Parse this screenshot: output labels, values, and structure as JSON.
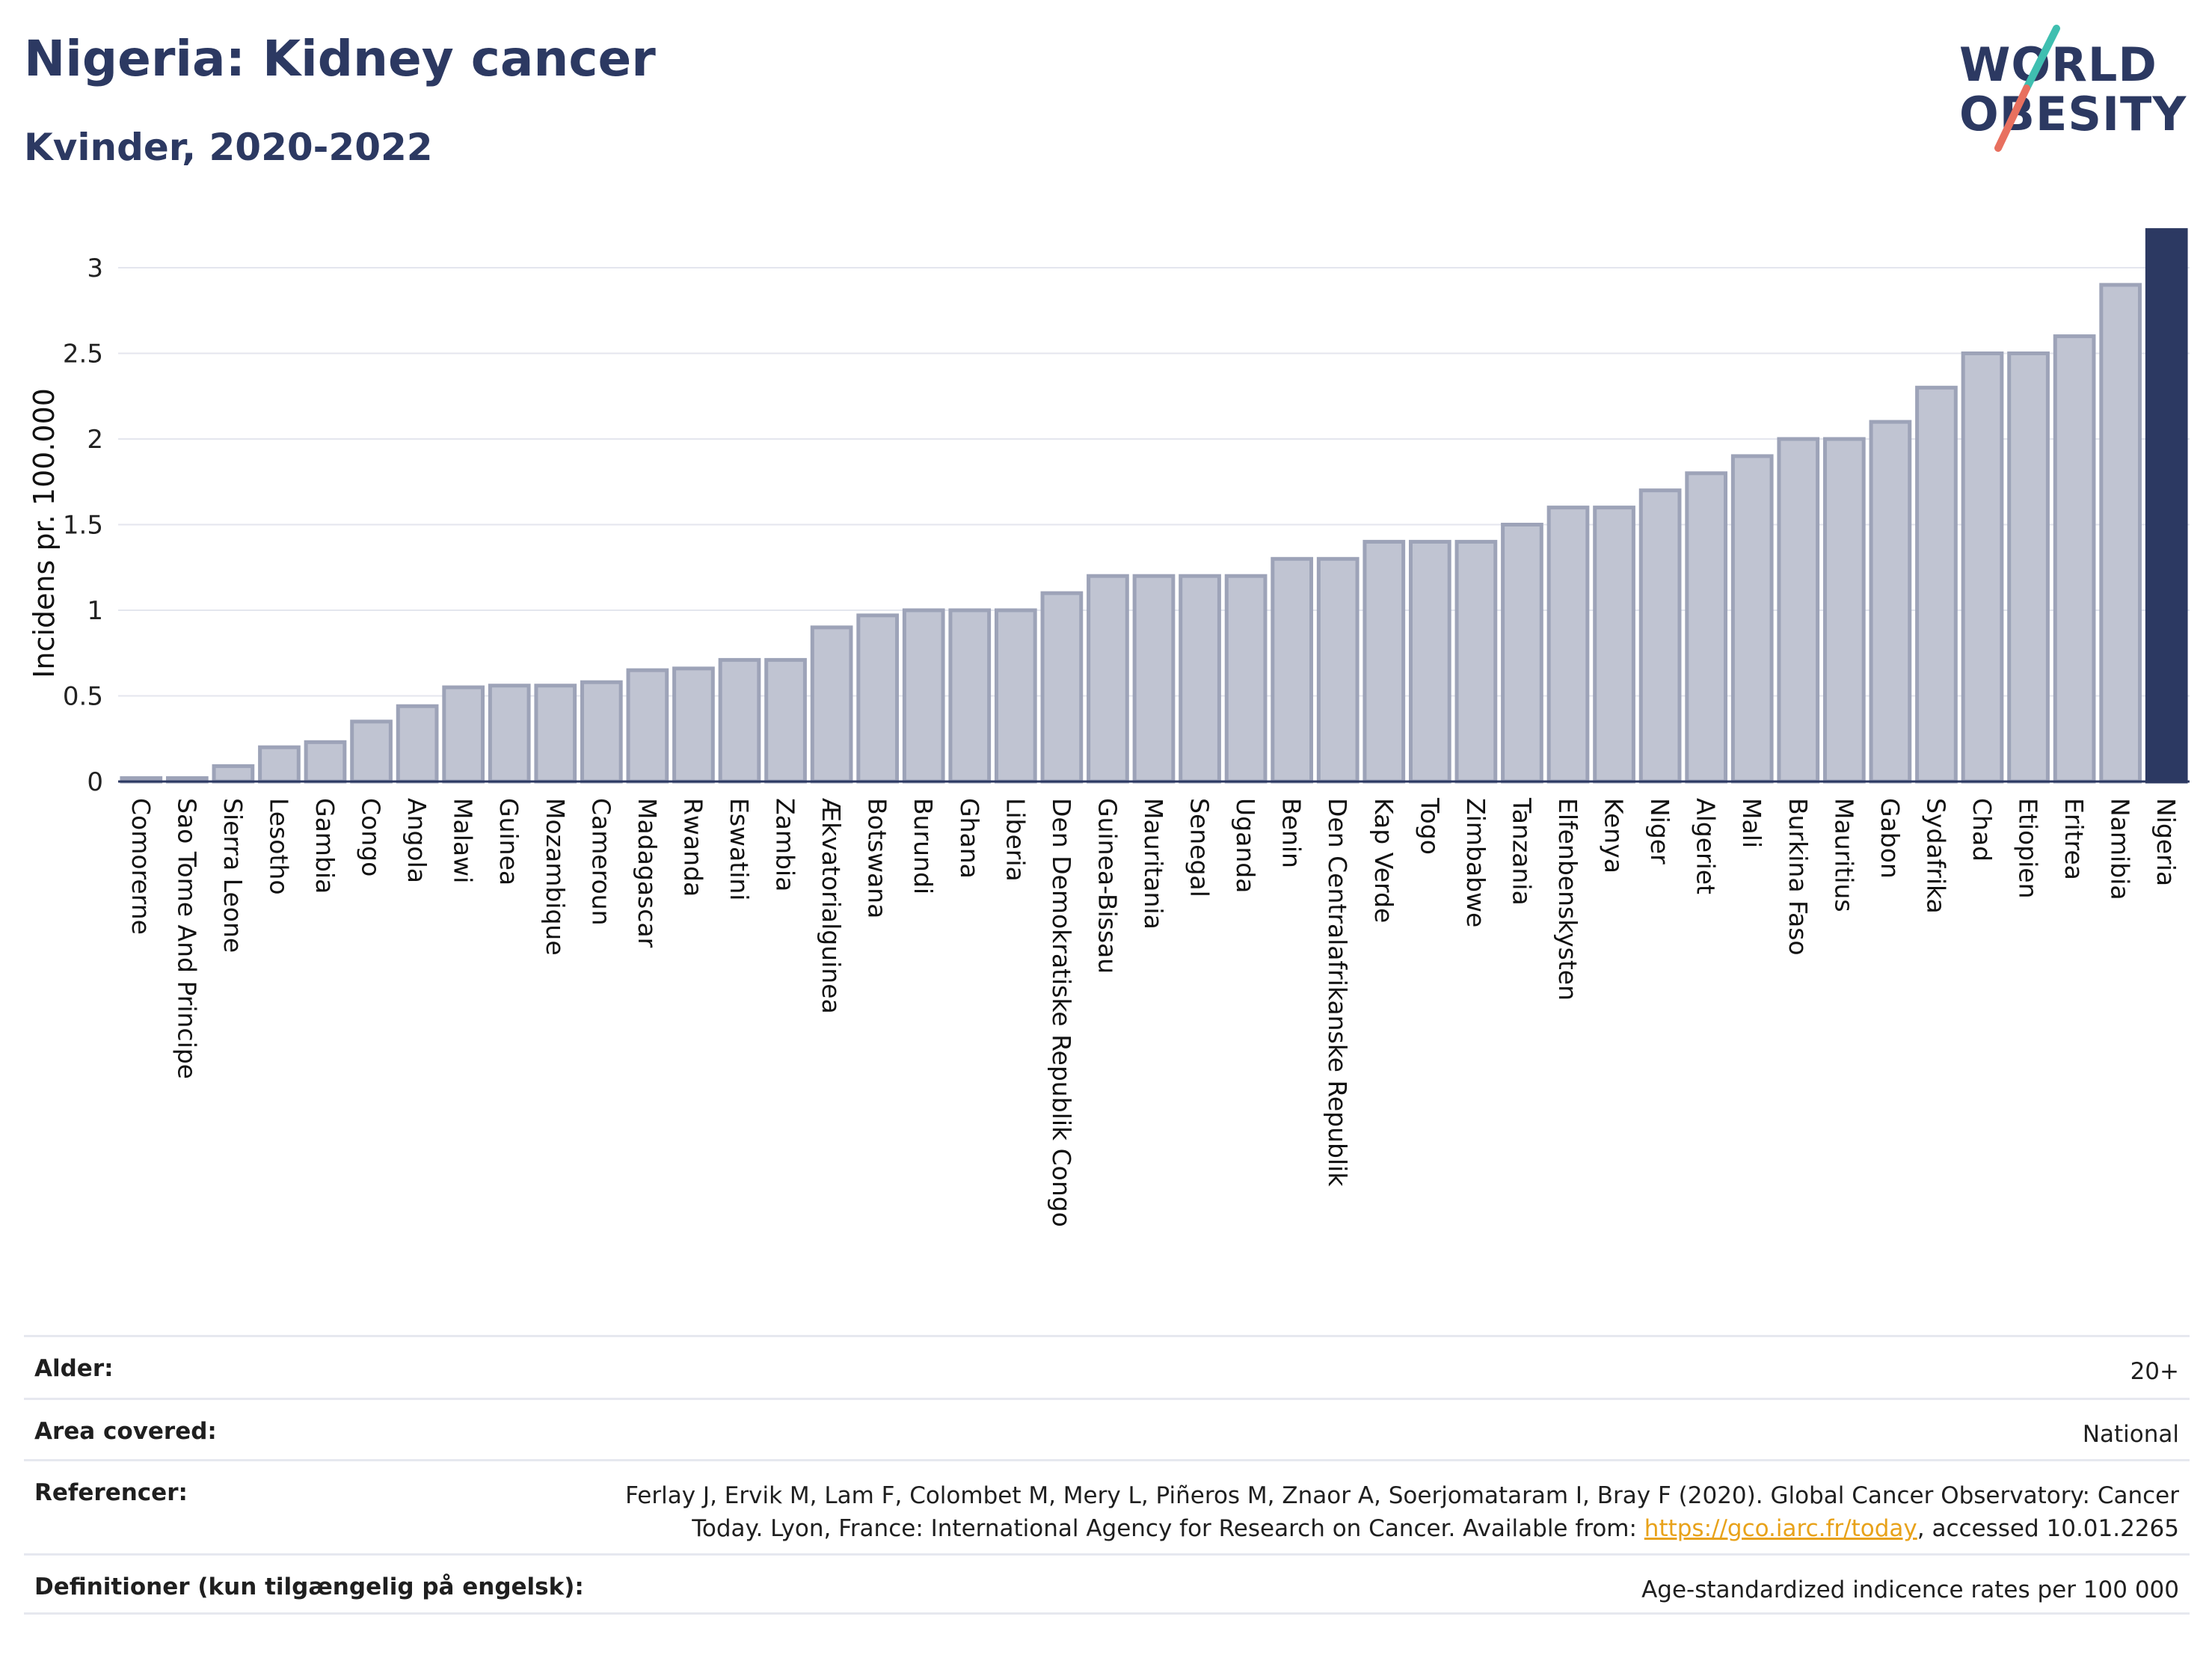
{
  "header": {
    "title": "Nigeria: Kidney cancer",
    "subtitle": "Kvinder, 2020-2022"
  },
  "logo": {
    "line1": "WORLD",
    "line2": "OBESITY",
    "colors": {
      "text": "#2c3962",
      "slash_top": "#3fbfb0",
      "slash_bottom": "#e8705f"
    }
  },
  "chart_data": {
    "type": "bar",
    "title": "Nigeria: Kidney cancer",
    "subtitle": "Kvinder, 2020-2022",
    "ylabel": "Incidens pr. 100.000",
    "xlabel": "",
    "ylim": [
      0,
      3.22
    ],
    "yticks": [
      0,
      0.5,
      1,
      1.5,
      2,
      2.5,
      3
    ],
    "ytick_labels": [
      "0",
      "0.5",
      "1",
      "1.5",
      "2",
      "2.5",
      "3"
    ],
    "grid": true,
    "highlight": "Nigeria",
    "colors": {
      "bar": "#c0c4d2",
      "bar_border": "#9da3b8",
      "highlight": "#2c3962"
    },
    "categories": [
      "Comorerne",
      "Sao Tome And Principe",
      "Sierra Leone",
      "Lesotho",
      "Gambia",
      "Congo",
      "Angola",
      "Malawi",
      "Guinea",
      "Mozambique",
      "Cameroun",
      "Madagascar",
      "Rwanda",
      "Eswatini",
      "Zambia",
      "Ækvatorialguinea",
      "Botswana",
      "Burundi",
      "Ghana",
      "Liberia",
      "Den Demokratiske Republik Congo",
      "Guinea-Bissau",
      "Mauritania",
      "Senegal",
      "Uganda",
      "Benin",
      "Den Centralafrikanske Republik",
      "Kap Verde",
      "Togo",
      "Zimbabwe",
      "Tanzania",
      "Elfenbenskysten",
      "Kenya",
      "Niger",
      "Algeriet",
      "Mali",
      "Burkina Faso",
      "Mauritius",
      "Gabon",
      "Sydafrika",
      "Chad",
      "Etiopien",
      "Eritrea",
      "Namibia",
      "Nigeria"
    ],
    "values": [
      0.02,
      0.02,
      0.09,
      0.2,
      0.23,
      0.35,
      0.44,
      0.55,
      0.56,
      0.56,
      0.58,
      0.65,
      0.66,
      0.71,
      0.71,
      0.9,
      0.97,
      1.0,
      1.0,
      1.0,
      1.1,
      1.2,
      1.2,
      1.2,
      1.2,
      1.3,
      1.3,
      1.4,
      1.4,
      1.4,
      1.5,
      1.6,
      1.6,
      1.7,
      1.8,
      1.9,
      2.0,
      2.0,
      2.1,
      2.3,
      2.5,
      2.5,
      2.6,
      2.9,
      3.22
    ]
  },
  "meta": {
    "rows": [
      {
        "label": "Alder:",
        "value": "20+"
      },
      {
        "label": "Area covered:",
        "value": "National"
      },
      {
        "label": "Referencer:",
        "value_line1": "Ferlay J, Ervik M, Lam F, Colombet M, Mery L, Piñeros M, Znaor A, Soerjomataram I, Bray F (2020). Global Cancer Observatory: Cancer",
        "value_line2_pre": "Today. Lyon, France: International Agency for Research on Cancer. Available from: ",
        "link": "https://gco.iarc.fr/today",
        "value_line2_post": ", accessed 10.01.2265"
      },
      {
        "label": "Definitioner (kun tilgængelig på engelsk):",
        "value": "Age-standardized indicence rates per 100 000"
      }
    ]
  }
}
